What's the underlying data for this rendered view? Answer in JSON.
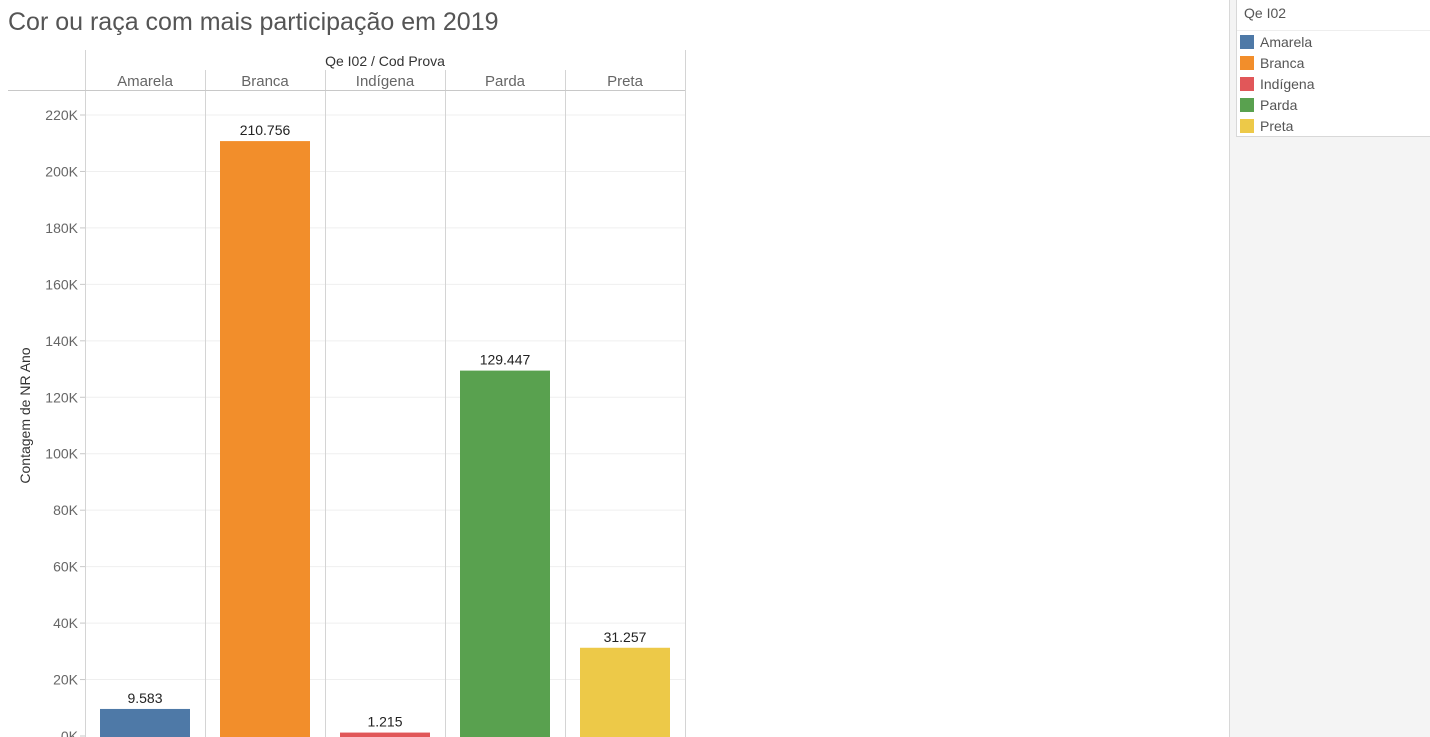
{
  "title": "Cor ou raça com mais participação em 2019",
  "legend": {
    "title": "Qe I02",
    "items": [
      {
        "label": "Amarela",
        "color": "#4e79a7"
      },
      {
        "label": "Branca",
        "color": "#f28e2b"
      },
      {
        "label": "Indígena",
        "color": "#e15759"
      },
      {
        "label": "Parda",
        "color": "#59a14f"
      },
      {
        "label": "Preta",
        "color": "#edc948"
      }
    ]
  },
  "chart_data": {
    "type": "bar",
    "column_header": "Qe I02  /  Cod Prova",
    "ylabel": "Contagem de NR Ano",
    "xlabel": "",
    "categories": [
      "Amarela",
      "Branca",
      "Indígena",
      "Parda",
      "Preta"
    ],
    "values": [
      9583,
      210756,
      1215,
      129447,
      31257
    ],
    "data_labels": [
      "9.583",
      "210.756",
      "1.215",
      "129.447",
      "31.257"
    ],
    "colors": [
      "#4e79a7",
      "#f28e2b",
      "#e15759",
      "#59a14f",
      "#edc948"
    ],
    "ylim": [
      0,
      220000
    ],
    "yticks": [
      0,
      20000,
      40000,
      60000,
      80000,
      100000,
      120000,
      140000,
      160000,
      180000,
      200000,
      220000
    ],
    "ytick_labels": [
      "0K",
      "20K",
      "40K",
      "60K",
      "80K",
      "100K",
      "120K",
      "140K",
      "160K",
      "180K",
      "200K",
      "220K"
    ],
    "grid": true,
    "legend_position": "right"
  }
}
